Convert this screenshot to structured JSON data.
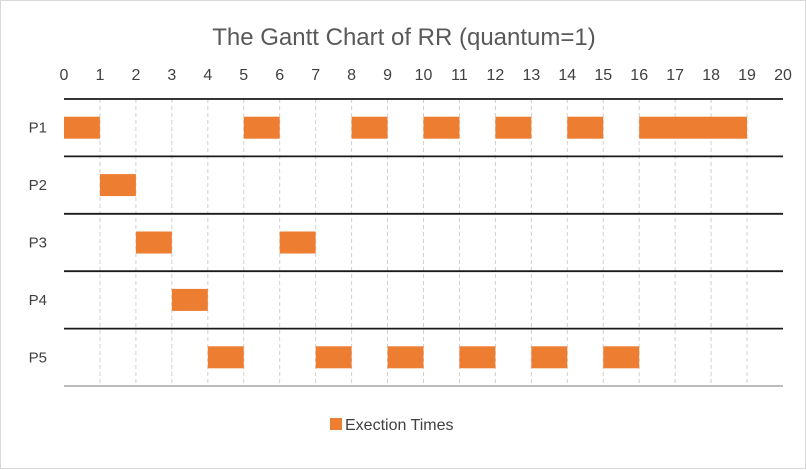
{
  "chart_data": {
    "type": "bar",
    "orientation": "horizontal-gantt",
    "title": "The Gantt Chart of RR (quantum=1)",
    "xlabel": "",
    "ylabel": "",
    "xlim": [
      0,
      20
    ],
    "x_ticks": [
      0,
      1,
      2,
      3,
      4,
      5,
      6,
      7,
      8,
      9,
      10,
      11,
      12,
      13,
      14,
      15,
      16,
      17,
      18,
      19,
      20
    ],
    "x_axis_position": "top",
    "grid": "vertical dashed at each unit; solid horizontal row separators",
    "categories": [
      "P1",
      "P2",
      "P3",
      "P4",
      "P5"
    ],
    "series": [
      {
        "name": "Exection Times",
        "color": "#ed7d31",
        "intervals": [
          {
            "category": "P1",
            "start": 0,
            "end": 1
          },
          {
            "category": "P1",
            "start": 5,
            "end": 6
          },
          {
            "category": "P1",
            "start": 8,
            "end": 9
          },
          {
            "category": "P1",
            "start": 10,
            "end": 11
          },
          {
            "category": "P1",
            "start": 12,
            "end": 13
          },
          {
            "category": "P1",
            "start": 14,
            "end": 15
          },
          {
            "category": "P1",
            "start": 16,
            "end": 19
          },
          {
            "category": "P2",
            "start": 1,
            "end": 2
          },
          {
            "category": "P3",
            "start": 2,
            "end": 3
          },
          {
            "category": "P3",
            "start": 6,
            "end": 7
          },
          {
            "category": "P4",
            "start": 3,
            "end": 4
          },
          {
            "category": "P5",
            "start": 4,
            "end": 5
          },
          {
            "category": "P5",
            "start": 7,
            "end": 8
          },
          {
            "category": "P5",
            "start": 9,
            "end": 10
          },
          {
            "category": "P5",
            "start": 11,
            "end": 12
          },
          {
            "category": "P5",
            "start": 13,
            "end": 14
          },
          {
            "category": "P5",
            "start": 15,
            "end": 16
          }
        ]
      }
    ],
    "legend": {
      "position": "bottom",
      "entries": [
        "Exection Times"
      ]
    }
  }
}
